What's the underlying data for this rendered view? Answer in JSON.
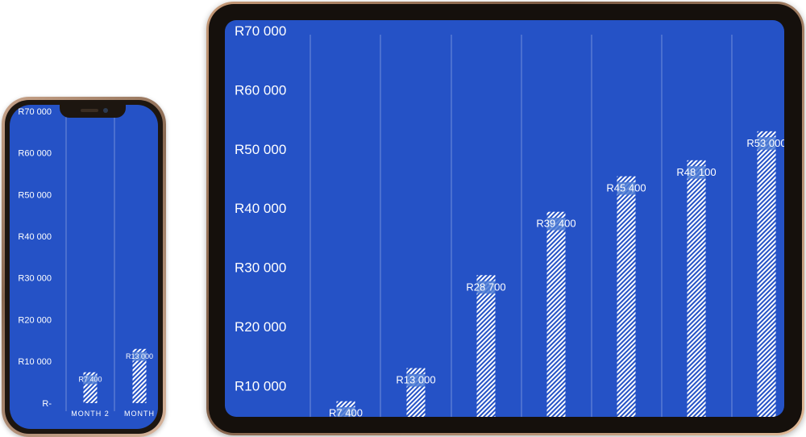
{
  "chart_data": [
    {
      "device": "phone",
      "type": "bar",
      "categories": [
        "MONTH 2",
        "MONTH"
      ],
      "values": [
        7400,
        13000
      ],
      "data_labels": [
        "R7 400",
        "R13 000"
      ],
      "y_ticks": [
        {
          "value": 0,
          "label": "R-"
        },
        {
          "value": 10000,
          "label": "R10 000"
        },
        {
          "value": 20000,
          "label": "R20 000"
        },
        {
          "value": 30000,
          "label": "R30 000"
        },
        {
          "value": 40000,
          "label": "R40 000"
        },
        {
          "value": 50000,
          "label": "R50 000"
        },
        {
          "value": 60000,
          "label": "R60 000"
        },
        {
          "value": 70000,
          "label": "R70 000"
        }
      ],
      "ylim": [
        0,
        70000
      ],
      "grid": "vertical",
      "title": "",
      "xlabel": "",
      "ylabel": ""
    },
    {
      "device": "tablet",
      "type": "bar",
      "categories": [
        "",
        "",
        "",
        "",
        "",
        "",
        ""
      ],
      "values": [
        7400,
        13000,
        28700,
        39400,
        45400,
        48100,
        53000
      ],
      "data_labels": [
        "R7 400",
        "R13 000",
        "R28 700",
        "R39 400",
        "R45 400",
        "R48 100",
        "R53 000"
      ],
      "y_ticks": [
        {
          "value": 10000,
          "label": "R10 000"
        },
        {
          "value": 20000,
          "label": "R20 000"
        },
        {
          "value": 30000,
          "label": "R30 000"
        },
        {
          "value": 40000,
          "label": "R40 000"
        },
        {
          "value": 50000,
          "label": "R50 000"
        },
        {
          "value": 60000,
          "label": "R60 000"
        },
        {
          "value": 70000,
          "label": "R70 000"
        }
      ],
      "ylim": [
        0,
        70000
      ],
      "grid": "vertical",
      "title": "",
      "xlabel": "",
      "ylabel": ""
    }
  ],
  "colors": {
    "screen_background": "#2552c6",
    "bar_stripe": "#ffffff",
    "label_highlight": "#4b7ad3"
  }
}
